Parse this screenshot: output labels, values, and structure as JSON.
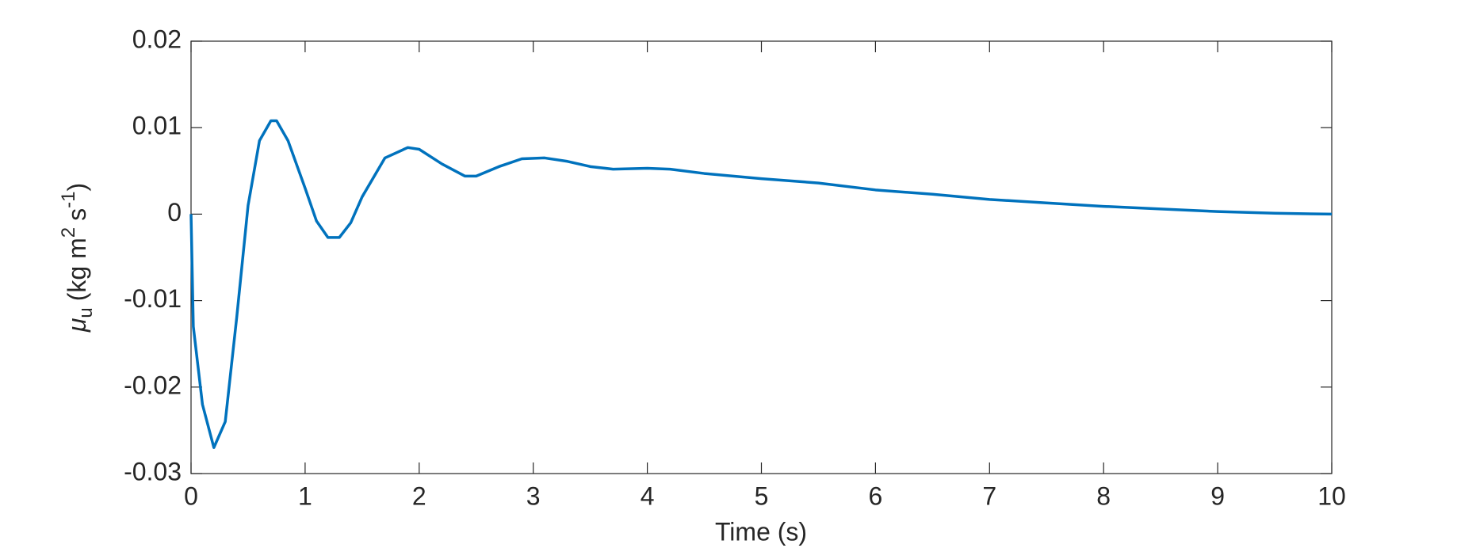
{
  "chart_data": {
    "type": "line",
    "xlabel": "Time (s)",
    "ylabel": {
      "symbol": "μ",
      "subscript": "u",
      "text": "(kg m",
      "sup1": "2",
      "mid": "s",
      "sup2": "-1",
      "end": ")"
    },
    "x": [
      0,
      0.02,
      0.1,
      0.2,
      0.3,
      0.4,
      0.5,
      0.6,
      0.7,
      0.75,
      0.85,
      1.0,
      1.1,
      1.2,
      1.3,
      1.4,
      1.5,
      1.7,
      1.9,
      2.0,
      2.2,
      2.4,
      2.5,
      2.7,
      2.9,
      3.1,
      3.3,
      3.5,
      3.7,
      4.0,
      4.2,
      4.5,
      5.0,
      5.5,
      6.0,
      6.5,
      7.0,
      7.5,
      8.0,
      8.5,
      9.0,
      9.5,
      10
    ],
    "series": [
      {
        "color": "#0072bd",
        "values": [
          0,
          -0.013,
          -0.022,
          -0.027,
          -0.024,
          -0.012,
          0.001,
          0.0085,
          0.0108,
          0.0108,
          0.0085,
          0.003,
          -0.0008,
          -0.0027,
          -0.0027,
          -0.001,
          0.002,
          0.0065,
          0.0077,
          0.0075,
          0.0058,
          0.0044,
          0.0044,
          0.0055,
          0.0064,
          0.0065,
          0.0061,
          0.0055,
          0.0052,
          0.0053,
          0.0052,
          0.0047,
          0.0041,
          0.0036,
          0.0028,
          0.0023,
          0.0017,
          0.0013,
          0.0009,
          0.0006,
          0.0003,
          0.0001,
          0
        ]
      }
    ],
    "xlim": [
      0,
      10
    ],
    "xticks": [
      0,
      1,
      2,
      3,
      4,
      5,
      6,
      7,
      8,
      9,
      10
    ],
    "ylim": [
      -0.03,
      0.02
    ],
    "yticks": [
      -0.03,
      -0.02,
      -0.01,
      0,
      0.01,
      0.02
    ],
    "grid": false
  }
}
